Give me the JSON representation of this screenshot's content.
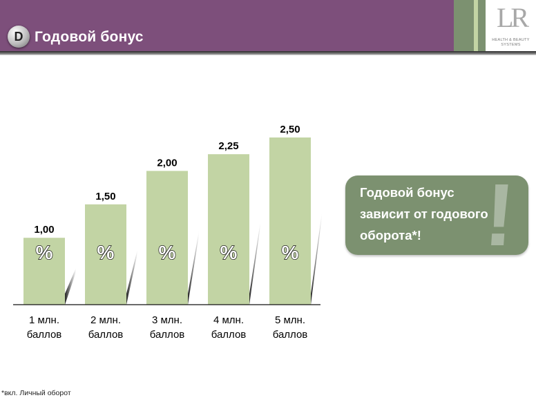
{
  "header": {
    "badge_letter": "D",
    "title": "Годовой бонус",
    "logo": {
      "mark": "LR",
      "line1": "HEALTH & BEAUTY",
      "line2": "SYSTEMS"
    }
  },
  "chart_data": {
    "type": "bar",
    "categories": [
      [
        "1 млн.",
        "баллов"
      ],
      [
        "2 млн.",
        "баллов"
      ],
      [
        "3 млн.",
        "баллов"
      ],
      [
        "4 млн.",
        "баллов"
      ],
      [
        "5  млн.",
        "баллов"
      ]
    ],
    "values": [
      1.0,
      1.5,
      2.0,
      2.25,
      2.5
    ],
    "value_labels": [
      "1,00",
      "1,50",
      "2,00",
      "2,25",
      "2,50"
    ],
    "bar_symbol": "%",
    "ylim": [
      0,
      2.5
    ],
    "grid": false,
    "bar_color": "#c2d4a4"
  },
  "callout": {
    "lines": [
      "Годовой бонус",
      "зависит от годового",
      "оборота*!"
    ],
    "mark": "!",
    "color": "#7c9170"
  },
  "footnote": "*вкл. Личный оборот",
  "colors": {
    "header": "#7d4f7b",
    "stripe_dark": "#7c9170",
    "stripe_light": "#c2d4a4"
  }
}
